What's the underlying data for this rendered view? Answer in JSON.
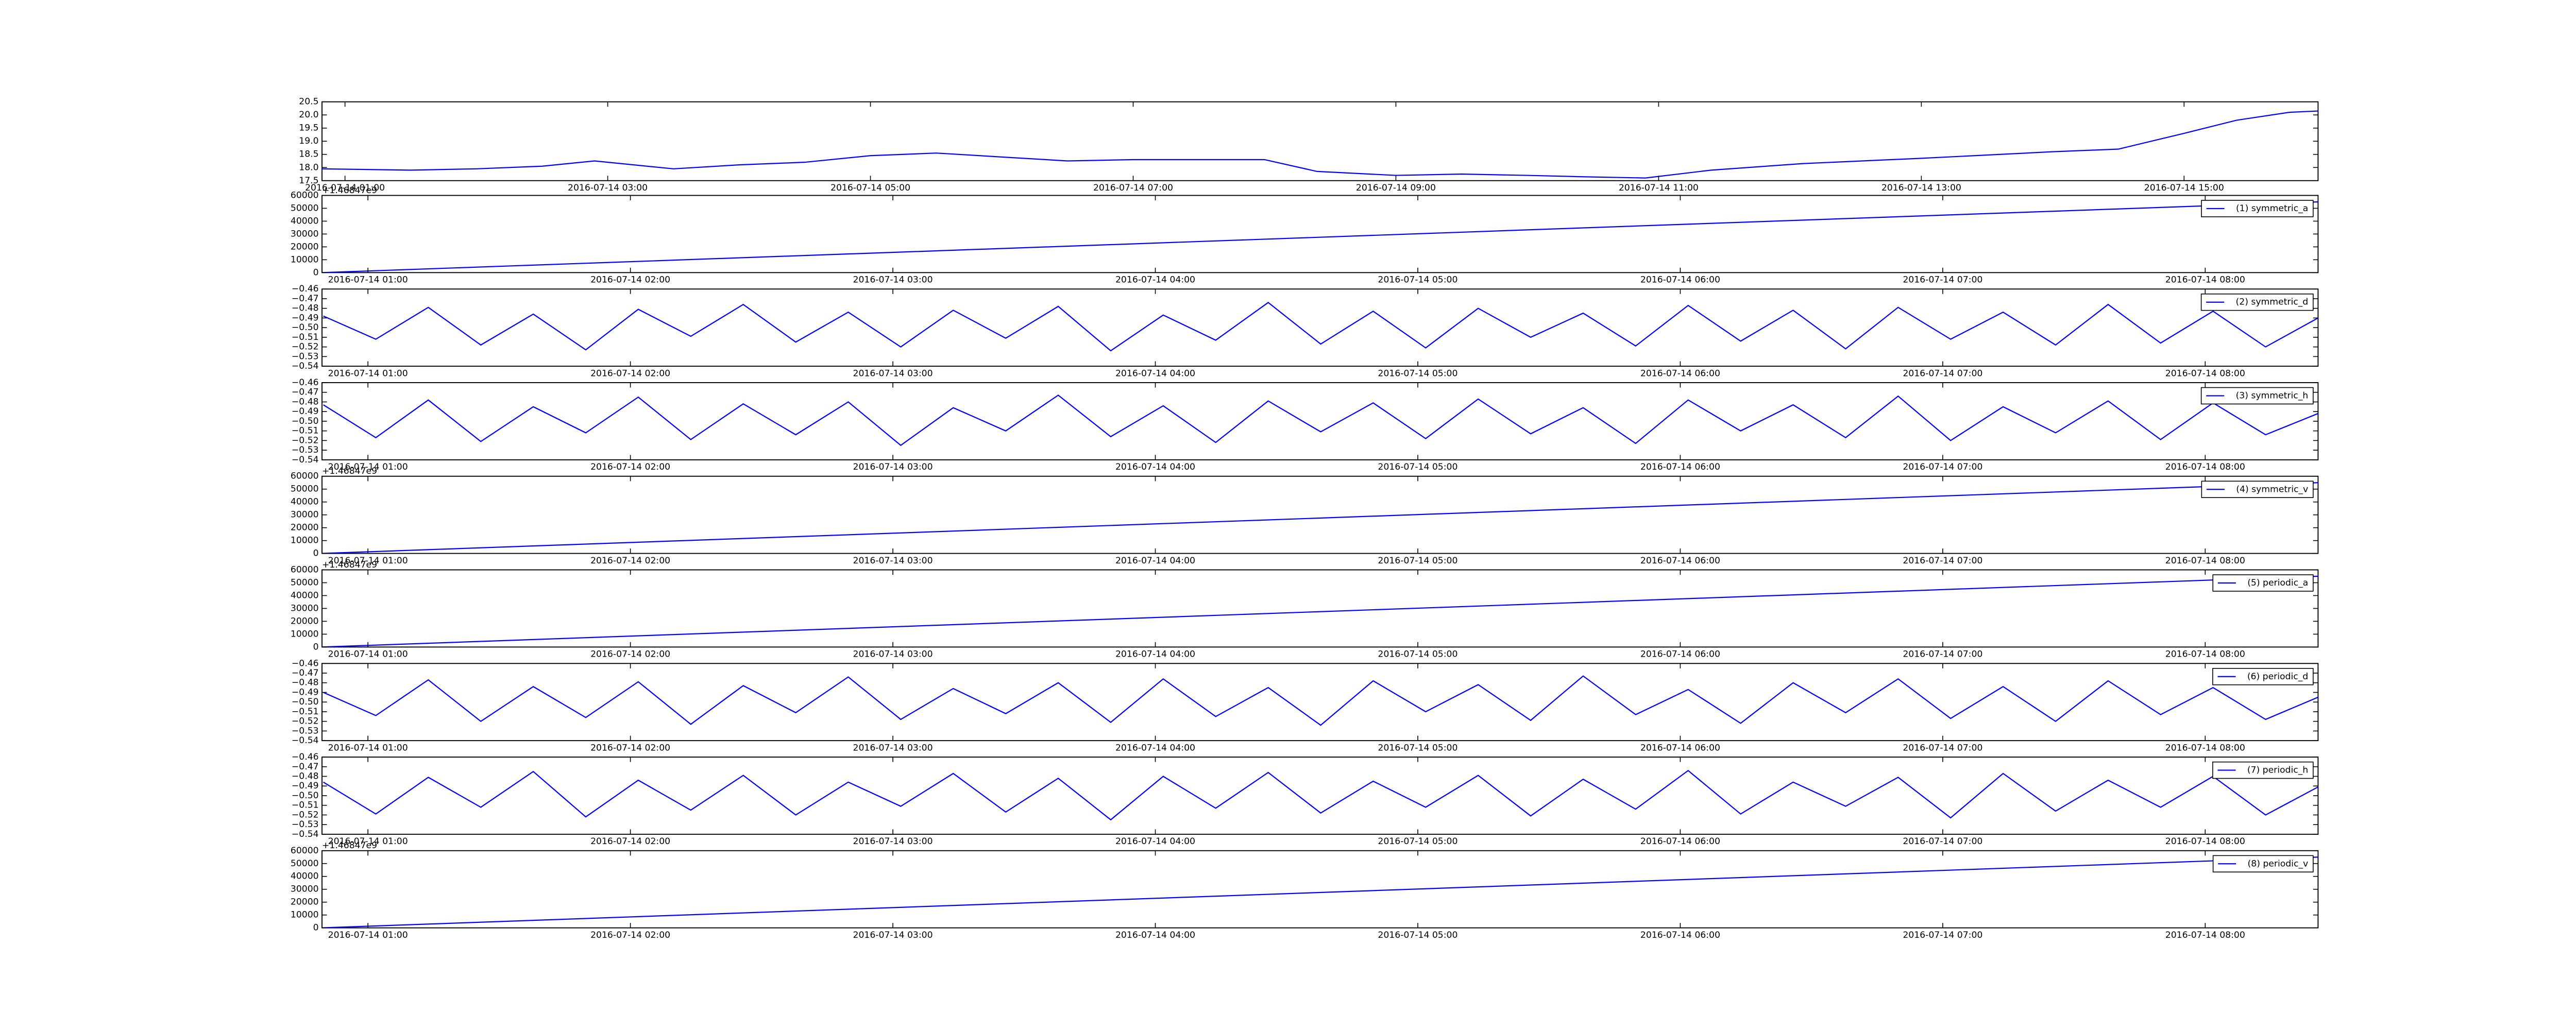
{
  "chart_data": [
    {
      "type": "line",
      "xlim": [
        0.825,
        16.02
      ],
      "ylim": [
        17.5,
        20.5
      ],
      "xticks": [
        {
          "value": 1,
          "label": "2016-07-14 01:00"
        },
        {
          "value": 3,
          "label": "2016-07-14 03:00"
        },
        {
          "value": 5,
          "label": "2016-07-14 05:00"
        },
        {
          "value": 7,
          "label": "2016-07-14 07:00"
        },
        {
          "value": 9,
          "label": "2016-07-14 09:00"
        },
        {
          "value": 11,
          "label": "2016-07-14 11:00"
        },
        {
          "value": 13,
          "label": "2016-07-14 13:00"
        },
        {
          "value": 15,
          "label": "2016-07-14 15:00"
        }
      ],
      "yticks": [
        17.5,
        {
          "value": 18,
          "label": "18.0"
        },
        18.5,
        {
          "value": 19,
          "label": "19.0"
        },
        19.5,
        {
          "value": 20,
          "label": "20.0"
        },
        20.5
      ],
      "x": [
        0.825,
        1.5,
        2,
        2.5,
        2.9,
        3.5,
        4,
        4.5,
        5,
        5.5,
        6,
        6.5,
        7,
        7.5,
        8,
        8.4,
        9,
        9.5,
        10,
        10.4,
        10.9,
        11.4,
        12.1,
        13,
        14,
        14.5,
        15,
        15.4,
        15.8,
        16.02
      ],
      "series": [
        {
          "color": "#0000ff",
          "values": [
            17.95,
            17.9,
            17.95,
            18.05,
            18.25,
            17.95,
            18.1,
            18.2,
            18.45,
            18.55,
            18.4,
            18.25,
            18.3,
            18.3,
            18.3,
            17.85,
            17.7,
            17.75,
            17.7,
            17.65,
            17.6,
            17.9,
            18.15,
            18.35,
            18.6,
            18.7,
            19.3,
            19.8,
            20.1,
            20.15
          ]
        }
      ]
    },
    {
      "type": "line",
      "offset_text": "+1.46847e9",
      "xlim": [
        0.825,
        8.43
      ],
      "ylim": [
        0,
        60000
      ],
      "xticks": [
        {
          "value": 1,
          "label": "2016-07-14 01:00"
        },
        {
          "value": 2,
          "label": "2016-07-14 02:00"
        },
        {
          "value": 3,
          "label": "2016-07-14 03:00"
        },
        {
          "value": 4,
          "label": "2016-07-14 04:00"
        },
        {
          "value": 5,
          "label": "2016-07-14 05:00"
        },
        {
          "value": 6,
          "label": "2016-07-14 06:00"
        },
        {
          "value": 7,
          "label": "2016-07-14 07:00"
        },
        {
          "value": 8,
          "label": "2016-07-14 08:00"
        }
      ],
      "yticks": [
        0,
        10000,
        20000,
        30000,
        40000,
        50000,
        60000
      ],
      "x": [
        0.825,
        8.43
      ],
      "series": [
        {
          "name": "(1) symmetric_a",
          "color": "#0000ff",
          "values": [
            0,
            55000
          ]
        }
      ]
    },
    {
      "type": "line",
      "xlim": [
        0.825,
        8.43
      ],
      "ylim": [
        -0.54,
        -0.46
      ],
      "xticks": [
        {
          "value": 1,
          "label": "2016-07-14 01:00"
        },
        {
          "value": 2,
          "label": "2016-07-14 02:00"
        },
        {
          "value": 3,
          "label": "2016-07-14 03:00"
        },
        {
          "value": 4,
          "label": "2016-07-14 04:00"
        },
        {
          "value": 5,
          "label": "2016-07-14 05:00"
        },
        {
          "value": 6,
          "label": "2016-07-14 06:00"
        },
        {
          "value": 7,
          "label": "2016-07-14 07:00"
        },
        {
          "value": 8,
          "label": "2016-07-14 08:00"
        }
      ],
      "yticks": [
        {
          "value": -0.54,
          "label": "−0.54"
        },
        {
          "value": -0.53,
          "label": "−0.53"
        },
        {
          "value": -0.52,
          "label": "−0.52"
        },
        {
          "value": -0.51,
          "label": "−0.51"
        },
        {
          "value": -0.5,
          "label": "−0.50"
        },
        {
          "value": -0.49,
          "label": "−0.49"
        },
        {
          "value": -0.48,
          "label": "−0.48"
        },
        {
          "value": -0.47,
          "label": "−0.47"
        },
        {
          "value": -0.46,
          "label": "−0.46"
        }
      ],
      "x": [
        0.83,
        1.03,
        1.23,
        1.43,
        1.63,
        1.83,
        2.03,
        2.23,
        2.43,
        2.63,
        2.83,
        3.03,
        3.23,
        3.43,
        3.63,
        3.83,
        4.03,
        4.23,
        4.43,
        4.63,
        4.83,
        5.03,
        5.23,
        5.43,
        5.63,
        5.83,
        6.03,
        6.23,
        6.43,
        6.63,
        6.83,
        7.03,
        7.23,
        7.43,
        7.63,
        7.83,
        8.03,
        8.23,
        8.43
      ],
      "series": [
        {
          "name": "(2) symmetric_d",
          "color": "#0000ff",
          "values": [
            -0.488,
            -0.512,
            -0.479,
            -0.518,
            -0.486,
            -0.523,
            -0.481,
            -0.509,
            -0.476,
            -0.515,
            -0.484,
            -0.52,
            -0.482,
            -0.511,
            -0.478,
            -0.524,
            -0.487,
            -0.513,
            -0.474,
            -0.517,
            -0.483,
            -0.521,
            -0.48,
            -0.51,
            -0.485,
            -0.519,
            -0.477,
            -0.514,
            -0.482,
            -0.522,
            -0.479,
            -0.512,
            -0.484,
            -0.518,
            -0.476,
            -0.516,
            -0.483,
            -0.52,
            -0.49
          ]
        }
      ]
    },
    {
      "type": "line",
      "xlim": [
        0.825,
        8.43
      ],
      "ylim": [
        -0.54,
        -0.46
      ],
      "xticks": [
        {
          "value": 1,
          "label": "2016-07-14 01:00"
        },
        {
          "value": 2,
          "label": "2016-07-14 02:00"
        },
        {
          "value": 3,
          "label": "2016-07-14 03:00"
        },
        {
          "value": 4,
          "label": "2016-07-14 04:00"
        },
        {
          "value": 5,
          "label": "2016-07-14 05:00"
        },
        {
          "value": 6,
          "label": "2016-07-14 06:00"
        },
        {
          "value": 7,
          "label": "2016-07-14 07:00"
        },
        {
          "value": 8,
          "label": "2016-07-14 08:00"
        }
      ],
      "yticks": [
        {
          "value": -0.54,
          "label": "−0.54"
        },
        {
          "value": -0.53,
          "label": "−0.53"
        },
        {
          "value": -0.52,
          "label": "−0.52"
        },
        {
          "value": -0.51,
          "label": "−0.51"
        },
        {
          "value": -0.5,
          "label": "−0.50"
        },
        {
          "value": -0.49,
          "label": "−0.49"
        },
        {
          "value": -0.48,
          "label": "−0.48"
        },
        {
          "value": -0.47,
          "label": "−0.47"
        },
        {
          "value": -0.46,
          "label": "−0.46"
        }
      ],
      "x": [
        0.83,
        1.03,
        1.23,
        1.43,
        1.63,
        1.83,
        2.03,
        2.23,
        2.43,
        2.63,
        2.83,
        3.03,
        3.23,
        3.43,
        3.63,
        3.83,
        4.03,
        4.23,
        4.43,
        4.63,
        4.83,
        5.03,
        5.23,
        5.43,
        5.63,
        5.83,
        6.03,
        6.23,
        6.43,
        6.63,
        6.83,
        7.03,
        7.23,
        7.43,
        7.63,
        7.83,
        8.03,
        8.23,
        8.43
      ],
      "series": [
        {
          "name": "(3) symmetric_h",
          "color": "#0000ff",
          "values": [
            -0.483,
            -0.517,
            -0.478,
            -0.521,
            -0.485,
            -0.512,
            -0.475,
            -0.519,
            -0.482,
            -0.514,
            -0.48,
            -0.525,
            -0.486,
            -0.51,
            -0.473,
            -0.516,
            -0.484,
            -0.522,
            -0.479,
            -0.511,
            -0.481,
            -0.518,
            -0.477,
            -0.513,
            -0.486,
            -0.523,
            -0.478,
            -0.51,
            -0.483,
            -0.517,
            -0.474,
            -0.52,
            -0.485,
            -0.512,
            -0.479,
            -0.519,
            -0.481,
            -0.514,
            -0.492
          ]
        }
      ]
    },
    {
      "type": "line",
      "offset_text": "+1.46847e9",
      "xlim": [
        0.825,
        8.43
      ],
      "ylim": [
        0,
        60000
      ],
      "xticks": [
        {
          "value": 1,
          "label": "2016-07-14 01:00"
        },
        {
          "value": 2,
          "label": "2016-07-14 02:00"
        },
        {
          "value": 3,
          "label": "2016-07-14 03:00"
        },
        {
          "value": 4,
          "label": "2016-07-14 04:00"
        },
        {
          "value": 5,
          "label": "2016-07-14 05:00"
        },
        {
          "value": 6,
          "label": "2016-07-14 06:00"
        },
        {
          "value": 7,
          "label": "2016-07-14 07:00"
        },
        {
          "value": 8,
          "label": "2016-07-14 08:00"
        }
      ],
      "yticks": [
        0,
        10000,
        20000,
        30000,
        40000,
        50000,
        60000
      ],
      "x": [
        0.825,
        8.43
      ],
      "series": [
        {
          "name": "(4) symmetric_v",
          "color": "#0000ff",
          "values": [
            0,
            55000
          ]
        }
      ]
    },
    {
      "type": "line",
      "offset_text": "+1.46847e9",
      "xlim": [
        0.825,
        8.43
      ],
      "ylim": [
        0,
        60000
      ],
      "xticks": [
        {
          "value": 1,
          "label": "2016-07-14 01:00"
        },
        {
          "value": 2,
          "label": "2016-07-14 02:00"
        },
        {
          "value": 3,
          "label": "2016-07-14 03:00"
        },
        {
          "value": 4,
          "label": "2016-07-14 04:00"
        },
        {
          "value": 5,
          "label": "2016-07-14 05:00"
        },
        {
          "value": 6,
          "label": "2016-07-14 06:00"
        },
        {
          "value": 7,
          "label": "2016-07-14 07:00"
        },
        {
          "value": 8,
          "label": "2016-07-14 08:00"
        }
      ],
      "yticks": [
        0,
        10000,
        20000,
        30000,
        40000,
        50000,
        60000
      ],
      "x": [
        0.825,
        8.43
      ],
      "series": [
        {
          "name": "(5) periodic_a",
          "color": "#0000ff",
          "values": [
            0,
            55000
          ]
        }
      ]
    },
    {
      "type": "line",
      "xlim": [
        0.825,
        8.43
      ],
      "ylim": [
        -0.54,
        -0.46
      ],
      "xticks": [
        {
          "value": 1,
          "label": "2016-07-14 01:00"
        },
        {
          "value": 2,
          "label": "2016-07-14 02:00"
        },
        {
          "value": 3,
          "label": "2016-07-14 03:00"
        },
        {
          "value": 4,
          "label": "2016-07-14 04:00"
        },
        {
          "value": 5,
          "label": "2016-07-14 05:00"
        },
        {
          "value": 6,
          "label": "2016-07-14 06:00"
        },
        {
          "value": 7,
          "label": "2016-07-14 07:00"
        },
        {
          "value": 8,
          "label": "2016-07-14 08:00"
        }
      ],
      "yticks": [
        {
          "value": -0.54,
          "label": "−0.54"
        },
        {
          "value": -0.53,
          "label": "−0.53"
        },
        {
          "value": -0.52,
          "label": "−0.52"
        },
        {
          "value": -0.51,
          "label": "−0.51"
        },
        {
          "value": -0.5,
          "label": "−0.50"
        },
        {
          "value": -0.49,
          "label": "−0.49"
        },
        {
          "value": -0.48,
          "label": "−0.48"
        },
        {
          "value": -0.47,
          "label": "−0.47"
        },
        {
          "value": -0.46,
          "label": "−0.46"
        }
      ],
      "x": [
        0.83,
        1.03,
        1.23,
        1.43,
        1.63,
        1.83,
        2.03,
        2.23,
        2.43,
        2.63,
        2.83,
        3.03,
        3.23,
        3.43,
        3.63,
        3.83,
        4.03,
        4.23,
        4.43,
        4.63,
        4.83,
        5.03,
        5.23,
        5.43,
        5.63,
        5.83,
        6.03,
        6.23,
        6.43,
        6.63,
        6.83,
        7.03,
        7.23,
        7.43,
        7.63,
        7.83,
        8.03,
        8.23,
        8.43
      ],
      "series": [
        {
          "name": "(6) periodic_d",
          "color": "#0000ff",
          "values": [
            -0.49,
            -0.514,
            -0.477,
            -0.52,
            -0.484,
            -0.516,
            -0.479,
            -0.523,
            -0.483,
            -0.511,
            -0.474,
            -0.518,
            -0.486,
            -0.512,
            -0.48,
            -0.521,
            -0.476,
            -0.515,
            -0.485,
            -0.524,
            -0.478,
            -0.51,
            -0.482,
            -0.519,
            -0.473,
            -0.513,
            -0.487,
            -0.522,
            -0.48,
            -0.511,
            -0.476,
            -0.517,
            -0.484,
            -0.52,
            -0.478,
            -0.513,
            -0.485,
            -0.518,
            -0.495
          ]
        }
      ]
    },
    {
      "type": "line",
      "xlim": [
        0.825,
        8.43
      ],
      "ylim": [
        -0.54,
        -0.46
      ],
      "xticks": [
        {
          "value": 1,
          "label": "2016-07-14 01:00"
        },
        {
          "value": 2,
          "label": "2016-07-14 02:00"
        },
        {
          "value": 3,
          "label": "2016-07-14 03:00"
        },
        {
          "value": 4,
          "label": "2016-07-14 04:00"
        },
        {
          "value": 5,
          "label": "2016-07-14 05:00"
        },
        {
          "value": 6,
          "label": "2016-07-14 06:00"
        },
        {
          "value": 7,
          "label": "2016-07-14 07:00"
        },
        {
          "value": 8,
          "label": "2016-07-14 08:00"
        }
      ],
      "yticks": [
        {
          "value": -0.54,
          "label": "−0.54"
        },
        {
          "value": -0.53,
          "label": "−0.53"
        },
        {
          "value": -0.52,
          "label": "−0.52"
        },
        {
          "value": -0.51,
          "label": "−0.51"
        },
        {
          "value": -0.5,
          "label": "−0.50"
        },
        {
          "value": -0.49,
          "label": "−0.49"
        },
        {
          "value": -0.48,
          "label": "−0.48"
        },
        {
          "value": -0.47,
          "label": "−0.47"
        },
        {
          "value": -0.46,
          "label": "−0.46"
        }
      ],
      "x": [
        0.83,
        1.03,
        1.23,
        1.43,
        1.63,
        1.83,
        2.03,
        2.23,
        2.43,
        2.63,
        2.83,
        3.03,
        3.23,
        3.43,
        3.63,
        3.83,
        4.03,
        4.23,
        4.43,
        4.63,
        4.83,
        5.03,
        5.23,
        5.43,
        5.63,
        5.83,
        6.03,
        6.23,
        6.43,
        6.63,
        6.83,
        7.03,
        7.23,
        7.43,
        7.63,
        7.83,
        8.03,
        8.23,
        8.43
      ],
      "series": [
        {
          "name": "(7) periodic_h",
          "color": "#0000ff",
          "values": [
            -0.486,
            -0.519,
            -0.481,
            -0.512,
            -0.475,
            -0.522,
            -0.484,
            -0.515,
            -0.479,
            -0.52,
            -0.486,
            -0.511,
            -0.477,
            -0.517,
            -0.482,
            -0.525,
            -0.48,
            -0.513,
            -0.476,
            -0.518,
            -0.485,
            -0.512,
            -0.479,
            -0.521,
            -0.483,
            -0.514,
            -0.474,
            -0.519,
            -0.486,
            -0.511,
            -0.481,
            -0.523,
            -0.477,
            -0.516,
            -0.484,
            -0.512,
            -0.48,
            -0.52,
            -0.491
          ]
        }
      ]
    },
    {
      "type": "line",
      "offset_text": "+1.46847e9",
      "xlim": [
        0.825,
        8.43
      ],
      "ylim": [
        0,
        60000
      ],
      "xticks": [
        {
          "value": 1,
          "label": "2016-07-14 01:00"
        },
        {
          "value": 2,
          "label": "2016-07-14 02:00"
        },
        {
          "value": 3,
          "label": "2016-07-14 03:00"
        },
        {
          "value": 4,
          "label": "2016-07-14 04:00"
        },
        {
          "value": 5,
          "label": "2016-07-14 05:00"
        },
        {
          "value": 6,
          "label": "2016-07-14 06:00"
        },
        {
          "value": 7,
          "label": "2016-07-14 07:00"
        },
        {
          "value": 8,
          "label": "2016-07-14 08:00"
        }
      ],
      "yticks": [
        0,
        10000,
        20000,
        30000,
        40000,
        50000,
        60000
      ],
      "x": [
        0.825,
        8.43
      ],
      "series": [
        {
          "name": "(8) periodic_v",
          "color": "#0000ff",
          "values": [
            0,
            55000
          ]
        }
      ]
    }
  ]
}
